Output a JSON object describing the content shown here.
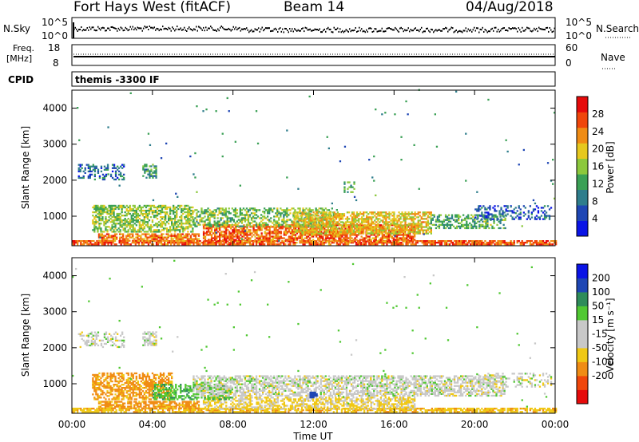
{
  "header": {
    "station": "Fort Hays West (fitACF)",
    "beam": "Beam 14",
    "date": "04/Aug/2018"
  },
  "aux_panels": {
    "nsky_label": "N.Sky",
    "nsky_ticks": [
      "10^5",
      "10^0"
    ],
    "nsearch_label": "N.Search",
    "nsearch_ticks": [
      "10^5",
      "10^0"
    ],
    "freq_label_line1": "Freq.",
    "freq_label_line2": "[MHz]",
    "freq_ticks": [
      "18",
      "8"
    ],
    "nave_label": "Nave",
    "nave_ticks": [
      "60",
      "0"
    ],
    "cpid_label": "CPID",
    "cpid_text": "themis -3300 IF"
  },
  "colors": {
    "power": [
      "#0a14e6",
      "#1e46b4",
      "#2e7d8c",
      "#3aa055",
      "#8cc83c",
      "#e6c81e",
      "#f08c14",
      "#f0460a",
      "#e60a0a"
    ],
    "velocity": [
      "#e60a0a",
      "#f0460a",
      "#f08c14",
      "#f0c814",
      "#c8c8c8",
      "#c8c8c8",
      "#50c832",
      "#2e8c5a",
      "#1e46b4",
      "#0a14e6"
    ]
  },
  "chart_data": [
    {
      "type": "heatmap",
      "name": "power",
      "ylabel": "Slant Range [km]",
      "ylim": [
        180,
        4500
      ],
      "yticks": [
        "1000",
        "2000",
        "3000",
        "4000"
      ],
      "colorbar_label": "Power [dB]",
      "colorbar_ticks": [
        "4",
        "8",
        "12",
        "16",
        "20",
        "24",
        "28"
      ],
      "colorbar_range": [
        0,
        32
      ],
      "regions": [
        {
          "t0": 0.0,
          "t1": 24.0,
          "r0": 200,
          "r1": 300,
          "level": 26,
          "density": 0.75
        },
        {
          "t0": 1.3,
          "t1": 6.3,
          "r0": 300,
          "r1": 500,
          "level": 24,
          "density": 0.7
        },
        {
          "t0": 6.5,
          "t1": 17.0,
          "r0": 280,
          "r1": 750,
          "level": 25,
          "density": 0.7
        },
        {
          "t0": 1.0,
          "t1": 6.0,
          "r0": 550,
          "r1": 1300,
          "level": 16,
          "density": 0.6
        },
        {
          "t0": 6.0,
          "t1": 13.0,
          "r0": 700,
          "r1": 1200,
          "level": 15,
          "density": 0.5
        },
        {
          "t0": 11.0,
          "t1": 17.8,
          "r0": 500,
          "r1": 1100,
          "level": 20,
          "density": 0.65
        },
        {
          "t0": 17.8,
          "t1": 21.5,
          "r0": 650,
          "r1": 1050,
          "level": 13,
          "density": 0.5
        },
        {
          "t0": 20.0,
          "t1": 23.8,
          "r0": 900,
          "r1": 1300,
          "level": 6,
          "density": 0.35
        },
        {
          "t0": 0.3,
          "t1": 2.6,
          "r0": 2000,
          "r1": 2450,
          "level": 7,
          "density": 0.35
        },
        {
          "t0": 3.5,
          "t1": 4.2,
          "r0": 2050,
          "r1": 2450,
          "level": 11,
          "density": 0.6
        },
        {
          "t0": 13.5,
          "t1": 14.0,
          "r0": 1650,
          "r1": 1950,
          "level": 14,
          "density": 0.5
        },
        {
          "t0": 0.0,
          "t1": 24.0,
          "r0": 300,
          "r1": 4500,
          "level": 10,
          "density": 0.003
        }
      ]
    },
    {
      "type": "heatmap",
      "name": "velocity",
      "xlabel": "Time UT",
      "xticks": [
        "00:00",
        "04:00",
        "08:00",
        "12:00",
        "16:00",
        "20:00",
        "00:00"
      ],
      "xlim": [
        0,
        24
      ],
      "ylabel": "Slant Range [km]",
      "ylim": [
        180,
        4500
      ],
      "yticks": [
        "1000",
        "2000",
        "3000",
        "4000"
      ],
      "colorbar_label": "Velocity [m s⁻¹]",
      "colorbar_ticks": [
        "200",
        "100",
        "50",
        "15",
        "-15",
        "-50",
        "-100",
        "-200"
      ],
      "regions": [
        {
          "t0": 0.0,
          "t1": 24.0,
          "r0": 200,
          "r1": 300,
          "level": -40,
          "density": 0.7
        },
        {
          "t0": 1.3,
          "t1": 6.3,
          "r0": 300,
          "r1": 500,
          "level": -60,
          "density": 0.7
        },
        {
          "t0": 6.5,
          "t1": 17.0,
          "r0": 280,
          "r1": 600,
          "level": -20,
          "density": 0.6
        },
        {
          "t0": 1.0,
          "t1": 5.0,
          "r0": 550,
          "r1": 1300,
          "level": -60,
          "density": 0.6
        },
        {
          "t0": 4.0,
          "t1": 8.0,
          "r0": 550,
          "r1": 1000,
          "level": 40,
          "density": 0.5
        },
        {
          "t0": 6.0,
          "t1": 21.5,
          "r0": 650,
          "r1": 1200,
          "level": 0,
          "density": 0.6
        },
        {
          "t0": 20.0,
          "t1": 23.8,
          "r0": 900,
          "r1": 1300,
          "level": 0,
          "density": 0.3
        },
        {
          "t0": 0.3,
          "t1": 2.6,
          "r0": 2000,
          "r1": 2450,
          "level": 0,
          "density": 0.35
        },
        {
          "t0": 3.5,
          "t1": 4.2,
          "r0": 2050,
          "r1": 2450,
          "level": 0,
          "density": 0.6
        },
        {
          "t0": 11.8,
          "t1": 12.2,
          "r0": 600,
          "r1": 750,
          "level": 120,
          "density": 0.9
        },
        {
          "t0": 0.0,
          "t1": 24.0,
          "r0": 300,
          "r1": 4500,
          "level": 30,
          "density": 0.003
        }
      ]
    }
  ]
}
